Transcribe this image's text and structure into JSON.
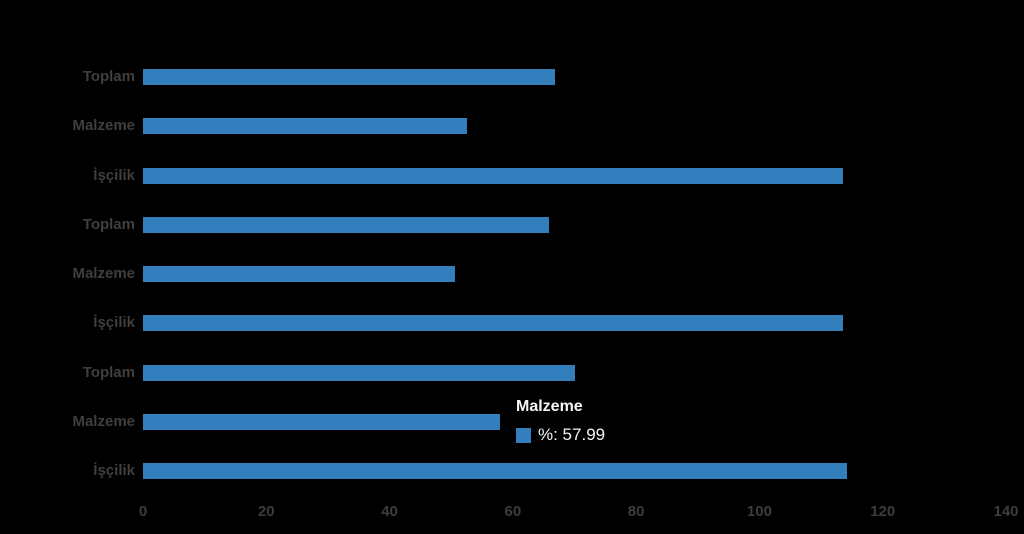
{
  "chart": {
    "background_color": "#000000",
    "bar_color": "#337FBE",
    "label_color": "#3f3f3f",
    "tick_color": "#3d3d3d"
  },
  "chart_data": {
    "type": "bar",
    "orientation": "horizontal",
    "title": "",
    "xlabel": "",
    "ylabel": "",
    "categories": [
      "Toplam",
      "Malzeme",
      "İşçilik",
      "Toplam",
      "Malzeme",
      "İşçilik",
      "Toplam",
      "Malzeme",
      "İşçilik"
    ],
    "series": [
      {
        "name": "%",
        "values": [
          66.8,
          52.5,
          113.6,
          65.8,
          50.6,
          113.5,
          70.0,
          57.99,
          114.2
        ]
      }
    ],
    "xlim": [
      0,
      140
    ],
    "xticks": [
      0,
      20,
      40,
      60,
      80,
      100,
      120,
      140
    ],
    "grid": false,
    "legend": "none",
    "bar_color": "#337FBE"
  },
  "tooltip": {
    "title": "Malzeme",
    "series_name": "%",
    "value": "57.99",
    "label": "%: 57.99"
  }
}
